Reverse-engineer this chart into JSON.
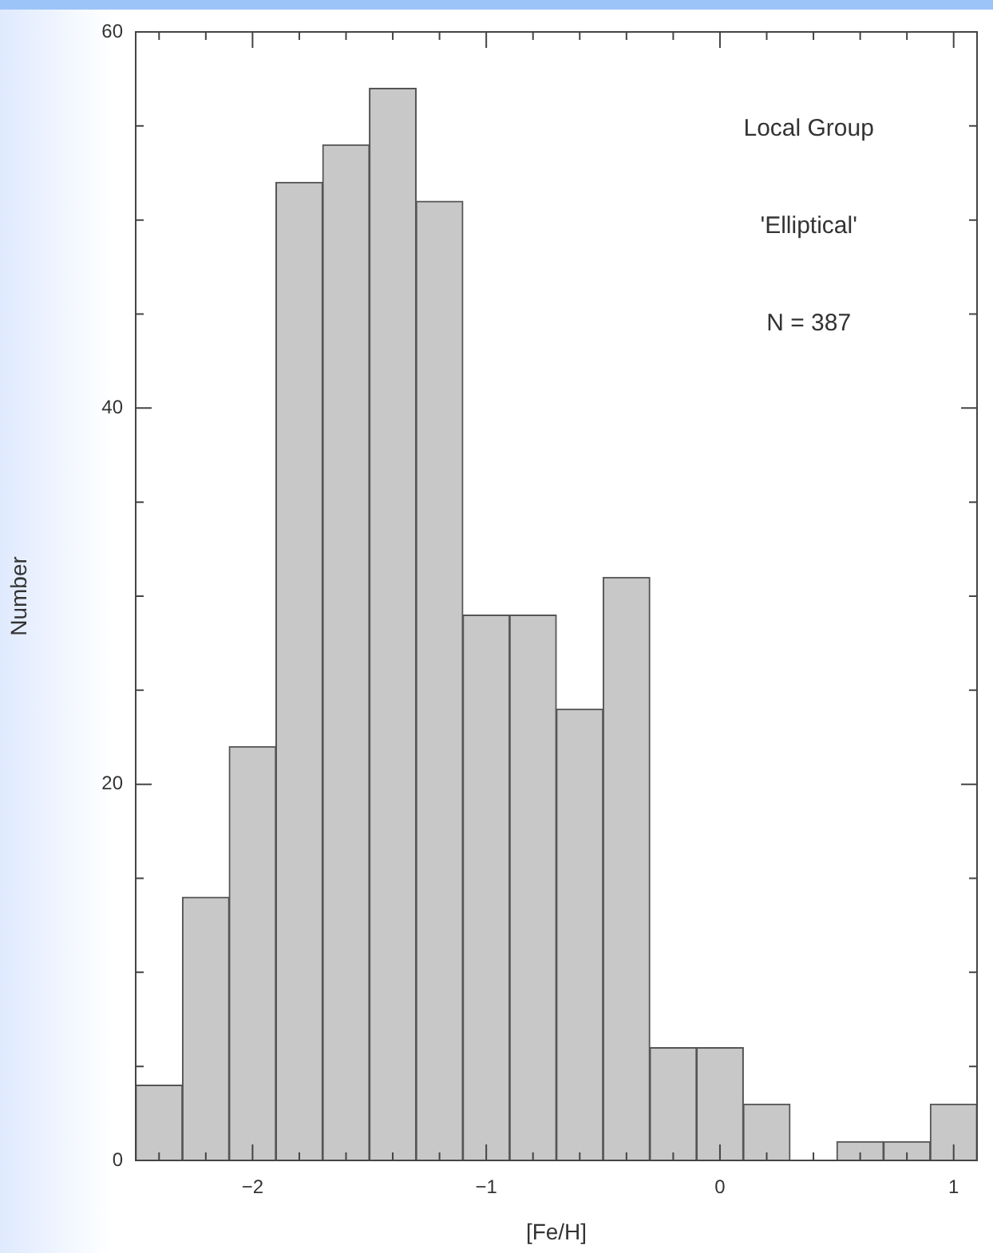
{
  "chart_data": {
    "type": "histogram",
    "xlabel": "[Fe/H]",
    "ylabel": "Number",
    "annotations": [
      "Local Group",
      "'Elliptical'",
      "N = 387"
    ],
    "bins": [
      -2.5,
      -2.3,
      -2.1,
      -1.9,
      -1.7,
      -1.5,
      -1.3,
      -1.1,
      -0.9,
      -0.7,
      -0.5,
      -0.3,
      -0.1,
      0.1,
      0.3,
      0.5,
      0.7,
      0.9,
      1.1
    ],
    "values": [
      4,
      14,
      22,
      52,
      54,
      57,
      51,
      29,
      29,
      24,
      31,
      6,
      6,
      3,
      0,
      1,
      1,
      3
    ],
    "color": "#c8c8c8",
    "xlim": [
      -2.5,
      1.1
    ],
    "xticks": [
      {
        "value": -2.4,
        "label": null
      },
      {
        "value": -2.2,
        "label": null
      },
      -2,
      {
        "value": -1.8,
        "label": null
      },
      {
        "value": -1.6,
        "label": null
      },
      {
        "value": -1.4,
        "label": null
      },
      {
        "value": -1.2,
        "label": null
      },
      -1,
      {
        "value": -0.8,
        "label": null
      },
      {
        "value": -0.6,
        "label": null
      },
      {
        "value": -0.4,
        "label": null
      },
      {
        "value": -0.2,
        "label": null
      },
      0,
      {
        "value": 0.2,
        "label": null
      },
      {
        "value": 0.4,
        "label": null
      },
      {
        "value": 0.6,
        "label": null
      },
      {
        "value": 0.8,
        "label": null
      },
      1
    ],
    "ylim": [
      0,
      60
    ],
    "yticks": [
      0,
      {
        "value": 5,
        "label": null
      },
      {
        "value": 10,
        "label": null
      },
      {
        "value": 15,
        "label": null
      },
      20,
      {
        "value": 25,
        "label": null
      },
      {
        "value": 30,
        "label": null
      },
      {
        "value": 35,
        "label": null
      },
      40,
      {
        "value": 45,
        "label": null
      },
      {
        "value": 50,
        "label": null
      },
      {
        "value": 55,
        "label": null
      },
      60
    ]
  }
}
